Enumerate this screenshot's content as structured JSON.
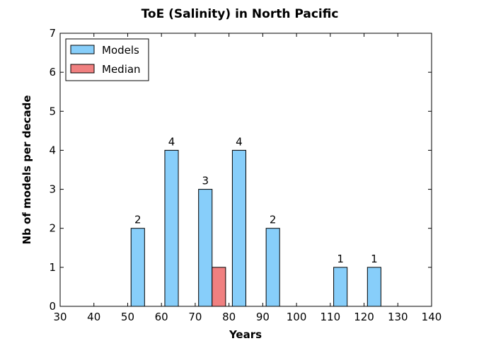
{
  "chart_data": {
    "type": "bar",
    "title": "ToE (Salinity) in North Pacific",
    "xlabel": "Years",
    "ylabel": "Nb of models per decade",
    "xlim": [
      30,
      140
    ],
    "ylim": [
      0,
      7
    ],
    "xticks": [
      "30",
      "40",
      "50",
      "60",
      "70",
      "80",
      "90",
      "100",
      "110",
      "120",
      "130",
      "140"
    ],
    "yticks": [
      "0",
      "1",
      "2",
      "3",
      "4",
      "5",
      "6",
      "7"
    ],
    "grid": false,
    "legend_position": "top-left",
    "bar_width": 4,
    "series": [
      {
        "name": "Models",
        "color": "#87CEFA",
        "points": [
          {
            "x": 51,
            "value": 2,
            "label": "2"
          },
          {
            "x": 61,
            "value": 4,
            "label": "4"
          },
          {
            "x": 71,
            "value": 3,
            "label": "3"
          },
          {
            "x": 81,
            "value": 4,
            "label": "4"
          },
          {
            "x": 91,
            "value": 2,
            "label": "2"
          },
          {
            "x": 111,
            "value": 1,
            "label": "1"
          },
          {
            "x": 121,
            "value": 1,
            "label": "1"
          }
        ]
      },
      {
        "name": "Median",
        "color": "#F08080",
        "points": [
          {
            "x": 75,
            "value": 1,
            "label": ""
          }
        ]
      }
    ]
  }
}
